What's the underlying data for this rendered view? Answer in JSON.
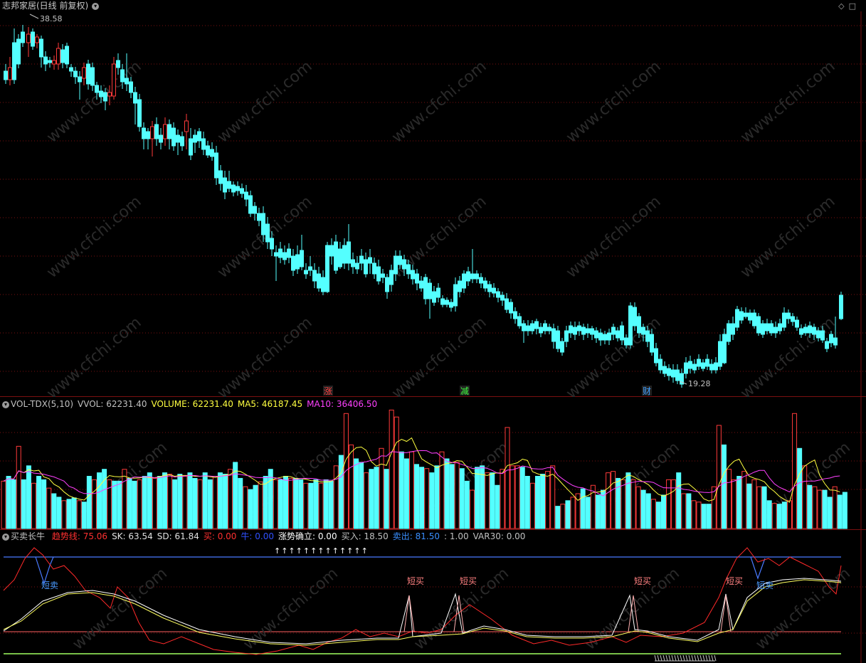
{
  "main": {
    "title": "志邦家居(日线 前复权)",
    "high_label": "38.58",
    "low_label": "19.28",
    "markers": [
      {
        "text": "涨",
        "color": "#ff4040"
      },
      {
        "text": "减",
        "color": "#40ff40"
      },
      {
        "text": "财",
        "color": "#40a0ff"
      }
    ],
    "watermark": "www.cfchi.com",
    "icons": [
      "diamond-icon",
      "restore-icon"
    ]
  },
  "vol": {
    "name": "VOL-TDX(5,10)",
    "vvol": "VVOL: 62231.40",
    "volume": "VOLUME: 62231.40",
    "ma5": "MA5: 46187.45",
    "ma10": "MA10: 36406.50",
    "colors": {
      "vvol": "#c0c0c0",
      "volume": "#ffff40",
      "ma5": "#ffff40",
      "ma10": "#ff40ff"
    }
  },
  "ind": {
    "name": "买卖长牛",
    "items": [
      {
        "text": "趋势线: 75.06",
        "color": "#ff3030"
      },
      {
        "text": "SK: 63.54",
        "color": "#e0e0e0"
      },
      {
        "text": "SD: 61.84",
        "color": "#e0e0e0"
      },
      {
        "text": "买: 0.00",
        "color": "#ff3030"
      },
      {
        "text": "牛: 0.00",
        "color": "#3050ff"
      },
      {
        "text": "涨势确立: 0.00",
        "color": "#ffffff"
      },
      {
        "text": "买入: 18.50",
        "color": "#c0c0c0"
      },
      {
        "text": "卖出: 81.50",
        "color": "#3a8fff"
      },
      {
        "text": ": 1.00",
        "color": "#c0c0c0"
      },
      {
        "text": "VAR30: 0.00",
        "color": "#c0c0c0"
      }
    ],
    "sell_label": "短卖",
    "buy_label": "短买",
    "arrows": "↑↑↑↑↑↑↑↑↑↑↑↑↑"
  }
}
